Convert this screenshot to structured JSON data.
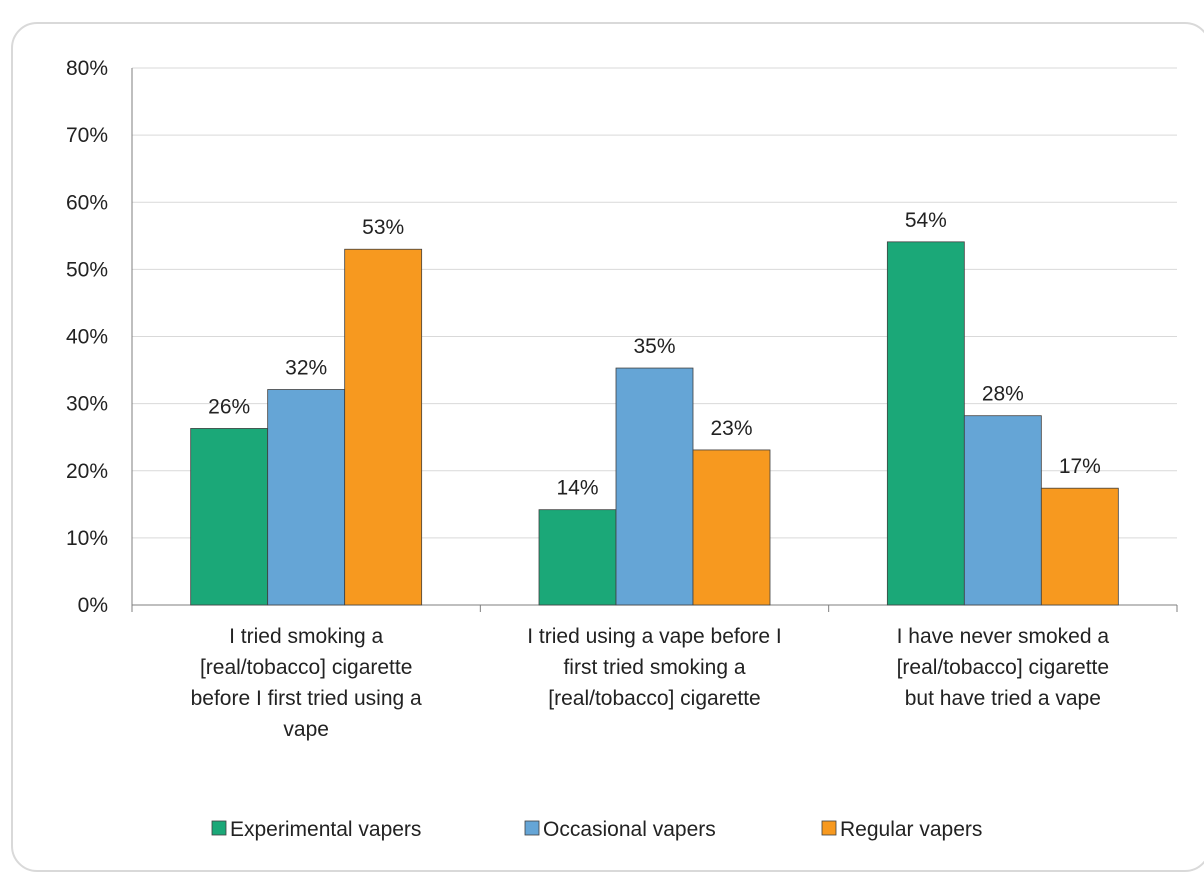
{
  "title": "",
  "colors": {
    "experimental": "#1ba878",
    "occasional": "#65a5d6",
    "regular": "#f7991f",
    "grid": "#d9d9d9",
    "axis": "#7f7f7f"
  },
  "chart_data": {
    "type": "bar",
    "ylim": [
      0,
      80
    ],
    "yticks": [
      "0%",
      "10%",
      "20%",
      "30%",
      "40%",
      "50%",
      "60%",
      "70%",
      "80%"
    ],
    "categories": [
      [
        "I tried smoking a",
        "[real/tobacco] cigarette",
        "before I first tried using a",
        "vape"
      ],
      [
        "I tried using a vape before I",
        "first tried smoking a",
        "[real/tobacco] cigarette"
      ],
      [
        "I have never smoked a",
        "[real/tobacco] cigarette",
        "but have tried a vape"
      ]
    ],
    "series": [
      {
        "name": "Experimental vapers",
        "values": [
          26.3,
          14.2,
          54.1
        ],
        "labels": [
          "26%",
          "14%",
          "54%"
        ]
      },
      {
        "name": "Occasional vapers",
        "values": [
          32.1,
          35.3,
          28.2
        ],
        "labels": [
          "32%",
          "35%",
          "28%"
        ]
      },
      {
        "name": "Regular vapers",
        "values": [
          53.0,
          23.1,
          17.4
        ],
        "labels": [
          "53%",
          "23%",
          "17%"
        ]
      }
    ],
    "grid": true,
    "legend": "bottom"
  }
}
